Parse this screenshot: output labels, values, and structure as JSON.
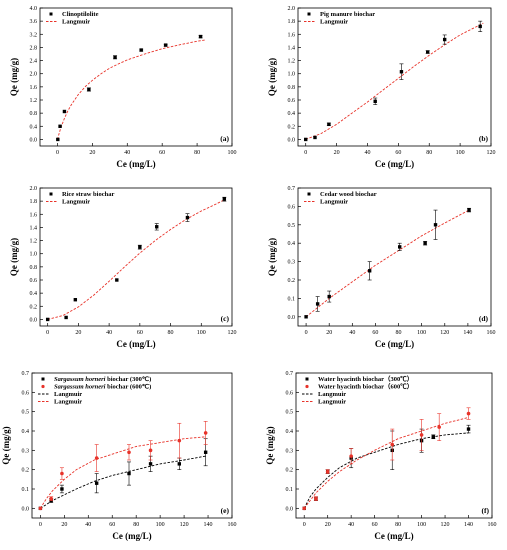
{
  "chart_data": [
    {
      "type": "scatter",
      "panel_label": "(a)",
      "xlabel": "Ce (mg/L)",
      "ylabel": "Qe (mg/g)",
      "xlim": [
        -10,
        100
      ],
      "ylim": [
        -0.2,
        4.0
      ],
      "xticks": [
        0,
        20,
        40,
        60,
        80,
        100
      ],
      "yticks": [
        0.0,
        0.4,
        0.8,
        1.2,
        1.6,
        2.0,
        2.4,
        2.8,
        3.2,
        3.6,
        4.0
      ],
      "yticks_text": [
        "0.0",
        "0.4",
        "0.8",
        "1.2",
        "1.6",
        "2.0",
        "2.4",
        "2.8",
        "3.2",
        "3.6",
        "4.0"
      ],
      "legend_position": "top-left",
      "series": [
        {
          "name": "Clinoptilolite",
          "kind": "points",
          "marker": "square",
          "color": "#000000",
          "x": [
            0.2,
            1.5,
            4,
            18,
            33,
            48,
            62,
            82
          ],
          "y": [
            0.0,
            0.4,
            0.85,
            1.52,
            2.5,
            2.72,
            2.87,
            3.13
          ],
          "err": [
            0,
            0,
            0,
            0.05,
            0.05,
            0.03,
            0.03,
            0.04
          ]
        },
        {
          "name": "Langmuir",
          "kind": "curve",
          "color": "#e8332a",
          "x": [
            0,
            1,
            2,
            4,
            6,
            8,
            12,
            16,
            20,
            25,
            30,
            35,
            40,
            50,
            60,
            70,
            80,
            85
          ],
          "y": [
            0.0,
            0.19,
            0.36,
            0.64,
            0.87,
            1.06,
            1.37,
            1.61,
            1.8,
            2.0,
            2.17,
            2.3,
            2.42,
            2.6,
            2.76,
            2.88,
            2.99,
            3.03
          ]
        }
      ]
    },
    {
      "type": "scatter",
      "panel_label": "(b)",
      "xlabel": "Ce (mg/L)",
      "ylabel": "Qe (mg/g)",
      "xlim": [
        -5,
        120
      ],
      "ylim": [
        -0.1,
        2.0
      ],
      "xticks": [
        0,
        20,
        40,
        60,
        80,
        100,
        120
      ],
      "yticks": [
        0.0,
        0.2,
        0.4,
        0.6,
        0.8,
        1.0,
        1.2,
        1.4,
        1.6,
        1.8,
        2.0
      ],
      "yticks_text": [
        "0.0",
        "0.2",
        "0.4",
        "0.6",
        "0.8",
        "1.0",
        "1.2",
        "1.4",
        "1.6",
        "1.8",
        "2.0"
      ],
      "legend_position": "top-left",
      "series": [
        {
          "name": "Pig manure biochar",
          "kind": "points",
          "marker": "square",
          "color": "#000000",
          "x": [
            0,
            6,
            15,
            45,
            62,
            79,
            90,
            113
          ],
          "y": [
            0.0,
            0.03,
            0.23,
            0.58,
            1.03,
            1.33,
            1.52,
            1.72
          ],
          "err": [
            0,
            0,
            0.02,
            0.05,
            0.12,
            0.02,
            0.07,
            0.08
          ]
        },
        {
          "name": "Langmuir",
          "kind": "curve",
          "color": "#e8332a",
          "x": [
            0,
            10,
            20,
            30,
            40,
            50,
            60,
            70,
            80,
            90,
            100,
            110,
            115
          ],
          "y": [
            0.0,
            0.09,
            0.23,
            0.4,
            0.57,
            0.75,
            0.93,
            1.11,
            1.28,
            1.44,
            1.59,
            1.71,
            1.77
          ]
        }
      ]
    },
    {
      "type": "scatter",
      "panel_label": "(c)",
      "xlabel": "Ce (mg/L)",
      "ylabel": "Qe (mg/g)",
      "xlim": [
        -5,
        120
      ],
      "ylim": [
        -0.1,
        2.0
      ],
      "xticks": [
        0,
        20,
        40,
        60,
        80,
        100,
        120
      ],
      "yticks": [
        0.0,
        0.2,
        0.4,
        0.6,
        0.8,
        1.0,
        1.2,
        1.4,
        1.6,
        1.8,
        2.0
      ],
      "yticks_text": [
        "0.0",
        "0.2",
        "0.4",
        "0.6",
        "0.8",
        "1.0",
        "1.2",
        "1.4",
        "1.6",
        "1.8",
        "2.0"
      ],
      "legend_position": "top-left",
      "series": [
        {
          "name": "Rice straw biochar",
          "kind": "points",
          "marker": "square",
          "color": "#000000",
          "x": [
            0,
            12,
            18,
            45,
            60,
            71,
            91,
            115
          ],
          "y": [
            0.0,
            0.03,
            0.3,
            0.6,
            1.1,
            1.41,
            1.55,
            1.83
          ],
          "err": [
            0,
            0,
            0,
            0,
            0.03,
            0.05,
            0.06,
            0.03
          ]
        },
        {
          "name": "Langmuir",
          "kind": "curve",
          "color": "#e8332a",
          "x": [
            0,
            10,
            20,
            30,
            40,
            50,
            60,
            70,
            80,
            90,
            100,
            110,
            115
          ],
          "y": [
            0.0,
            0.06,
            0.19,
            0.37,
            0.58,
            0.8,
            1.01,
            1.2,
            1.37,
            1.52,
            1.65,
            1.76,
            1.82
          ]
        }
      ]
    },
    {
      "type": "scatter",
      "panel_label": "(d)",
      "xlabel": "Ce (mg/L)",
      "ylabel": "Qe (mg/g)",
      "xlim": [
        -7,
        160
      ],
      "ylim": [
        -0.05,
        0.7
      ],
      "xticks": [
        0,
        20,
        40,
        60,
        80,
        100,
        120,
        140,
        160
      ],
      "yticks": [
        0.0,
        0.1,
        0.2,
        0.3,
        0.4,
        0.5,
        0.6,
        0.7
      ],
      "yticks_text": [
        "0.0",
        "0.1",
        "0.2",
        "0.3",
        "0.4",
        "0.5",
        "0.6",
        "0.7"
      ],
      "legend_position": "top-left",
      "series": [
        {
          "name": "Cedar wood biochar",
          "kind": "points",
          "marker": "square",
          "color": "#000000",
          "x": [
            0,
            10,
            20,
            55,
            81,
            103,
            112,
            141
          ],
          "y": [
            0.0,
            0.07,
            0.11,
            0.25,
            0.38,
            0.4,
            0.5,
            0.58
          ],
          "err": [
            0,
            0.04,
            0.03,
            0.05,
            0.02,
            0.01,
            0.08,
            0.01
          ]
        },
        {
          "name": "Langmuir",
          "kind": "curve",
          "color": "#e8332a",
          "x": [
            0,
            20,
            40,
            60,
            80,
            100,
            120,
            141
          ],
          "y": [
            0.0,
            0.1,
            0.19,
            0.28,
            0.36,
            0.44,
            0.51,
            0.58
          ]
        }
      ]
    },
    {
      "type": "scatter",
      "panel_label": "(e)",
      "xlabel": "Ce (mg/L)",
      "ylabel": "Qe (mg/g)",
      "xlim": [
        -7,
        160
      ],
      "ylim": [
        -0.05,
        0.7
      ],
      "xticks": [
        0,
        20,
        40,
        60,
        80,
        100,
        120,
        140,
        160
      ],
      "yticks": [
        0.0,
        0.1,
        0.2,
        0.3,
        0.4,
        0.5,
        0.6,
        0.7
      ],
      "yticks_text": [
        "0.0",
        "0.1",
        "0.2",
        "0.3",
        "0.4",
        "0.5",
        "0.6",
        "0.7"
      ],
      "legend_position": "top-left",
      "series": [
        {
          "name": "Sargassum horneri biochar (300℃)",
          "name_italic": "Sargassum horneri",
          "name_rest": " biochar (300℃)",
          "kind": "points",
          "marker": "square",
          "color": "#000000",
          "x": [
            0,
            9,
            18,
            47,
            74,
            92,
            116,
            138
          ],
          "y": [
            0.0,
            0.04,
            0.1,
            0.13,
            0.18,
            0.23,
            0.23,
            0.29
          ],
          "err": [
            0,
            0.01,
            0.02,
            0.05,
            0.06,
            0.04,
            0.03,
            0.07
          ]
        },
        {
          "name": "Sargassum horneri biochar (600℃)",
          "name_italic": "Sargassum horneri",
          "name_rest": " biochar (600℃)",
          "kind": "points",
          "marker": "circle",
          "color": "#e8332a",
          "x": [
            0,
            9,
            18,
            47,
            74,
            92,
            116,
            138
          ],
          "y": [
            0.0,
            0.05,
            0.18,
            0.26,
            0.29,
            0.3,
            0.35,
            0.39
          ],
          "err": [
            0,
            0.01,
            0.03,
            0.07,
            0.04,
            0.05,
            0.09,
            0.06
          ]
        },
        {
          "name": "Langmuir",
          "kind": "curve",
          "color": "#000000",
          "x": [
            0,
            5,
            10,
            20,
            30,
            45,
            60,
            80,
            100,
            120,
            138
          ],
          "y": [
            0.0,
            0.02,
            0.04,
            0.07,
            0.1,
            0.14,
            0.17,
            0.2,
            0.23,
            0.25,
            0.27
          ]
        },
        {
          "name": "Langmuir",
          "kind": "curve",
          "color": "#e8332a",
          "x": [
            0,
            5,
            10,
            20,
            30,
            45,
            60,
            80,
            100,
            120,
            138
          ],
          "y": [
            0.0,
            0.05,
            0.09,
            0.15,
            0.2,
            0.25,
            0.28,
            0.32,
            0.34,
            0.36,
            0.37
          ]
        }
      ]
    },
    {
      "type": "scatter",
      "panel_label": "(f)",
      "xlabel": "Ce (mg/L)",
      "ylabel": "Qe (mg/g)",
      "xlim": [
        -7,
        160
      ],
      "ylim": [
        -0.05,
        0.7
      ],
      "xticks": [
        0,
        20,
        40,
        60,
        80,
        100,
        120,
        140,
        160
      ],
      "yticks": [
        0.0,
        0.1,
        0.2,
        0.3,
        0.4,
        0.5,
        0.6,
        0.7
      ],
      "yticks_text": [
        "0.0",
        "0.1",
        "0.2",
        "0.3",
        "0.4",
        "0.5",
        "0.6",
        "0.7"
      ],
      "legend_position": "top-left",
      "series": [
        {
          "name": "Water hyacinth biochar（300℃）",
          "kind": "points",
          "marker": "square",
          "color": "#000000",
          "x": [
            0,
            10,
            20,
            40,
            75,
            100,
            110,
            140
          ],
          "y": [
            0.0,
            0.05,
            0.19,
            0.26,
            0.3,
            0.35,
            0.37,
            0.41
          ],
          "err": [
            0,
            0.01,
            0.01,
            0.05,
            0.1,
            0.06,
            0.01,
            0.02
          ]
        },
        {
          "name": "Water hyacinth biochar（600℃）",
          "kind": "points",
          "marker": "circle",
          "color": "#e8332a",
          "x": [
            0,
            10,
            20,
            40,
            75,
            100,
            115,
            140
          ],
          "y": [
            0.0,
            0.05,
            0.19,
            0.27,
            0.33,
            0.38,
            0.42,
            0.49
          ],
          "err": [
            0,
            0.01,
            0.01,
            0.04,
            0.08,
            0.08,
            0.07,
            0.03
          ]
        },
        {
          "name": "Langmuir",
          "kind": "curve",
          "color": "#000000",
          "x": [
            0,
            5,
            10,
            20,
            30,
            45,
            60,
            80,
            100,
            120,
            140
          ],
          "y": [
            0.0,
            0.06,
            0.1,
            0.16,
            0.21,
            0.26,
            0.29,
            0.33,
            0.36,
            0.38,
            0.39
          ]
        },
        {
          "name": "Langmuir",
          "kind": "curve",
          "color": "#e8332a",
          "x": [
            0,
            5,
            10,
            20,
            30,
            45,
            60,
            80,
            100,
            120,
            140
          ],
          "y": [
            0.0,
            0.04,
            0.08,
            0.14,
            0.19,
            0.25,
            0.3,
            0.36,
            0.4,
            0.44,
            0.47
          ]
        }
      ]
    }
  ]
}
